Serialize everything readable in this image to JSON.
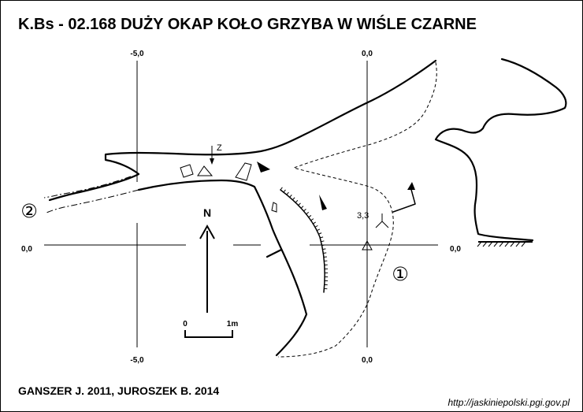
{
  "title": "K.Bs - 02.168 DUŻY OKAP KOŁO GRZYBA W WIŚLE CZARNE",
  "grid": {
    "top_left": "-5,0",
    "top_right": "0,0",
    "bottom_left": "-5,0",
    "bottom_right": "0,0",
    "left": "0,0",
    "right": "0,0"
  },
  "markers": {
    "z": "Z",
    "height": "3,3",
    "north": "N",
    "entrance_1": "①",
    "entrance_2": "②"
  },
  "scale": {
    "start": "0",
    "end": "1m"
  },
  "authors": "GANSZER J. 2011,  JUROSZEK  B. 2014",
  "source_url": "http://jaskiniepolski.pgi.gov.pl"
}
